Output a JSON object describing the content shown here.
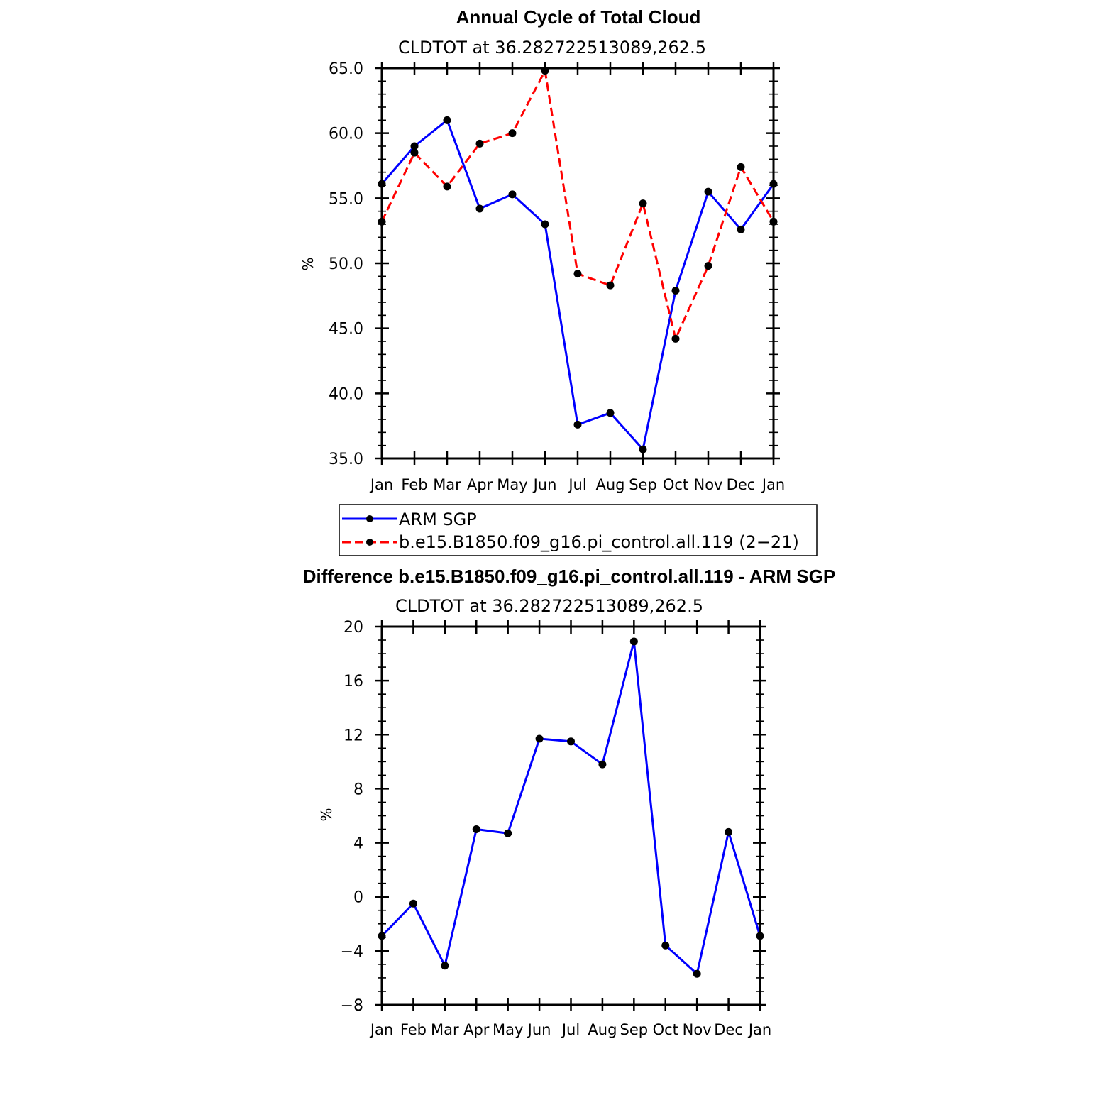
{
  "colors": {
    "blue": "#0000ff",
    "red": "#ff0000",
    "marker": "#000000"
  },
  "chart_data": [
    {
      "type": "line",
      "title": "Annual Cycle of Total Cloud",
      "subtitle": "CLDTOT at 36.282722513089,262.5",
      "xlabel": "",
      "ylabel": "%",
      "categories": [
        "Jan",
        "Feb",
        "Mar",
        "Apr",
        "May",
        "Jun",
        "Jul",
        "Aug",
        "Sep",
        "Oct",
        "Nov",
        "Dec",
        "Jan"
      ],
      "ylim": [
        35.0,
        65.0
      ],
      "yticks": [
        "35.0",
        "40.0",
        "45.0",
        "50.0",
        "55.0",
        "60.0",
        "65.0"
      ],
      "series": [
        {
          "name": "ARM SGP",
          "color": "#0000ff",
          "dash": "solid",
          "values": [
            56.1,
            59.0,
            61.0,
            54.2,
            55.3,
            53.0,
            37.6,
            38.5,
            35.7,
            47.9,
            55.5,
            52.6,
            56.1
          ]
        },
        {
          "name": "b.e15.B1850.f09_g16.pi_control.all.119 (2-21)",
          "color": "#ff0000",
          "dash": "dashed",
          "values": [
            53.2,
            58.5,
            55.9,
            59.2,
            60.0,
            64.8,
            49.2,
            48.3,
            54.6,
            44.2,
            49.8,
            57.4,
            53.2
          ]
        }
      ],
      "legend": {
        "position": "below",
        "entries": [
          "ARM SGP",
          "b.e15.B1850.f09_g16.pi_control.all.119 (2−21)"
        ]
      }
    },
    {
      "type": "line",
      "title": "Difference b.e15.B1850.f09_g16.pi_control.all.119 - ARM SGP",
      "subtitle": "CLDTOT at 36.282722513089,262.5",
      "xlabel": "",
      "ylabel": "%",
      "categories": [
        "Jan",
        "Feb",
        "Mar",
        "Apr",
        "May",
        "Jun",
        "Jul",
        "Aug",
        "Sep",
        "Oct",
        "Nov",
        "Dec",
        "Jan"
      ],
      "ylim": [
        -8,
        20
      ],
      "yticks": [
        "−8",
        "−4",
        "0",
        "4",
        "8",
        "12",
        "16",
        "20"
      ],
      "series": [
        {
          "name": "Difference",
          "color": "#0000ff",
          "dash": "solid",
          "values": [
            -2.9,
            -0.5,
            -5.1,
            5.0,
            4.7,
            11.7,
            11.5,
            9.8,
            18.9,
            -3.6,
            -5.7,
            4.8,
            -2.9
          ]
        }
      ]
    }
  ]
}
